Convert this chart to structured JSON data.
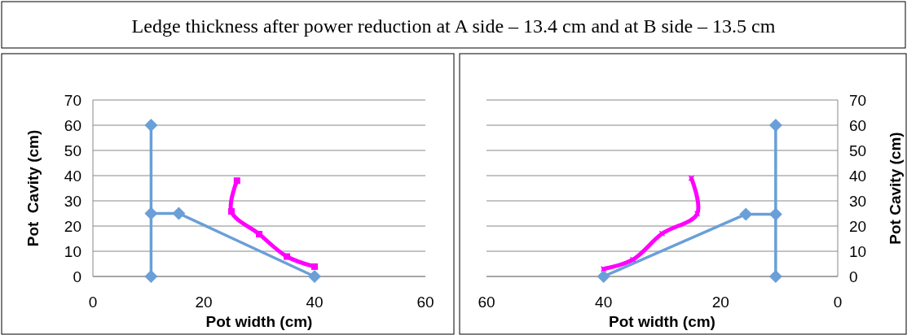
{
  "chart_data": [
    {
      "type": "line",
      "title": "Ledge thickness after power reduction at A side – 13.4 cm and at B side – 13.5 cm",
      "xlabel": "Pot width (cm)",
      "ylabel": "Pot  Cavity (cm)",
      "xlim": [
        0,
        60
      ],
      "xticks": [
        0,
        20,
        40,
        60
      ],
      "ylim": [
        0,
        70
      ],
      "yticks": [
        0,
        10,
        20,
        30,
        40,
        50,
        60,
        70
      ],
      "grid": "y",
      "series": [
        {
          "color": "#6a9fd8",
          "marker": "diamond",
          "x": [
            10.5,
            10.5,
            null,
            10.5,
            15.5,
            40
          ],
          "values": [
            60,
            0,
            null,
            25,
            25,
            0
          ]
        },
        {
          "color": "#ff00ff",
          "marker": "square",
          "x": [
            26,
            25,
            30,
            35,
            40
          ],
          "values": [
            38,
            25.8,
            16.8,
            7.9,
            3.9
          ]
        }
      ]
    },
    {
      "type": "line",
      "xlabel": "Pot width (cm)",
      "y2label": "Pot Cavity (cm)",
      "xlim": [
        60,
        0
      ],
      "xticks": [
        60,
        40,
        20,
        0
      ],
      "y2lim": [
        0,
        70
      ],
      "y2ticks": [
        0,
        10,
        20,
        30,
        40,
        50,
        60,
        70
      ],
      "grid": "y",
      "series": [
        {
          "color": "#6a9fd8",
          "marker": "diamond",
          "axis": "y2",
          "x": [
            10.6,
            10.6,
            null,
            10.6,
            15.7,
            40
          ],
          "values": [
            60,
            0,
            null,
            24.7,
            24.7,
            0
          ]
        },
        {
          "color": "#ff00ff",
          "marker": "cross",
          "axis": "y2",
          "x": [
            25,
            24,
            30,
            35,
            40
          ],
          "values": [
            39,
            24.9,
            17,
            6.7,
            3
          ]
        }
      ]
    }
  ]
}
